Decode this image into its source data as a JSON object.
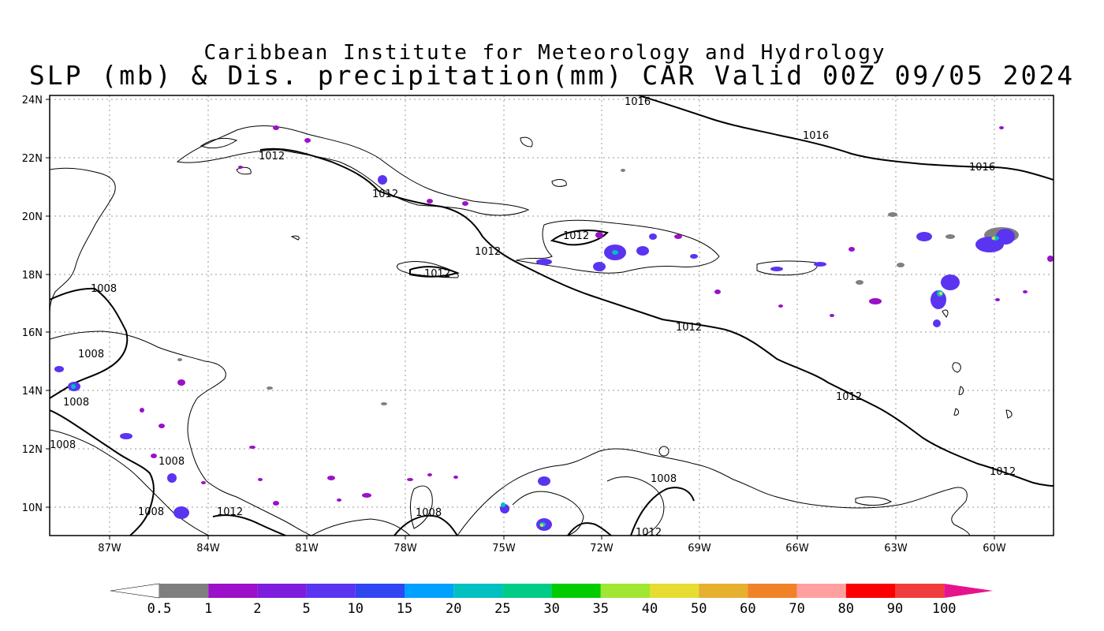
{
  "title": {
    "line1": "Caribbean Institute for Meteorology and Hydrology",
    "line2": "SLP (mb) & Dis. precipitation(mm) CAR Valid 00Z 09/05 2024"
  },
  "axes": {
    "lat_ticks": [
      "24N",
      "22N",
      "20N",
      "18N",
      "16N",
      "14N",
      "12N",
      "10N"
    ],
    "lon_ticks": [
      "87W",
      "84W",
      "81W",
      "78W",
      "75W",
      "72W",
      "69W",
      "66W",
      "63W",
      "60W"
    ],
    "lat_range": [
      9,
      24
    ],
    "lon_range": [
      -89,
      -58.5
    ]
  },
  "isobar_labels": [
    {
      "text": "1016"
    },
    {
      "text": "1016"
    },
    {
      "text": "1016"
    },
    {
      "text": "1012"
    },
    {
      "text": "1012"
    },
    {
      "text": "1012"
    },
    {
      "text": "1012"
    },
    {
      "text": "1012"
    },
    {
      "text": "1012"
    },
    {
      "text": "1012"
    },
    {
      "text": "1012"
    },
    {
      "text": "1012"
    },
    {
      "text": "1012"
    },
    {
      "text": "1008"
    },
    {
      "text": "1008"
    },
    {
      "text": "1008"
    },
    {
      "text": "1008"
    },
    {
      "text": "1008"
    },
    {
      "text": "1008"
    },
    {
      "text": "1008"
    },
    {
      "text": "1008"
    }
  ],
  "legend": {
    "labels": [
      "0.5",
      "1",
      "2",
      "5",
      "10",
      "15",
      "20",
      "25",
      "30",
      "35",
      "40",
      "50",
      "60",
      "70",
      "80",
      "90",
      "100"
    ],
    "colors": [
      "#7f7f7f",
      "#9b10c8",
      "#7e1edc",
      "#5a34f0",
      "#2f46f0",
      "#00a0ff",
      "#00c0c0",
      "#00cc88",
      "#00cc00",
      "#a0e632",
      "#e6dc32",
      "#e6af2d",
      "#f08228",
      "#ffa0a0",
      "#fa0000",
      "#f03c3c"
    ],
    "end_left": "#ffffff",
    "end_right": "#e6148c"
  },
  "colors": {
    "gridline": "#999999",
    "coast": "#000000"
  }
}
